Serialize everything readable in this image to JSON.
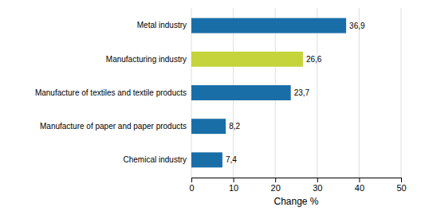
{
  "chart_data": {
    "type": "bar",
    "orientation": "horizontal",
    "categories": [
      "Chemical industry",
      "Manufacture of paper and paper products",
      "Manufacture of textiles and textile products",
      "Manufacturing industry",
      "Metal industry"
    ],
    "values": [
      7.4,
      8.2,
      23.7,
      26.6,
      36.9
    ],
    "value_labels": [
      "7,4",
      "8,2",
      "23,7",
      "26,6",
      "36,9"
    ],
    "data_labels": true,
    "colors": [
      "#1a6ea8",
      "#1a6ea8",
      "#1a6ea8",
      "#c5d43a",
      "#1a6ea8"
    ],
    "xlabel": "Change %",
    "xlim": [
      0,
      50
    ],
    "xticks": [
      0,
      10,
      20,
      30,
      40,
      50
    ],
    "grid": true
  }
}
